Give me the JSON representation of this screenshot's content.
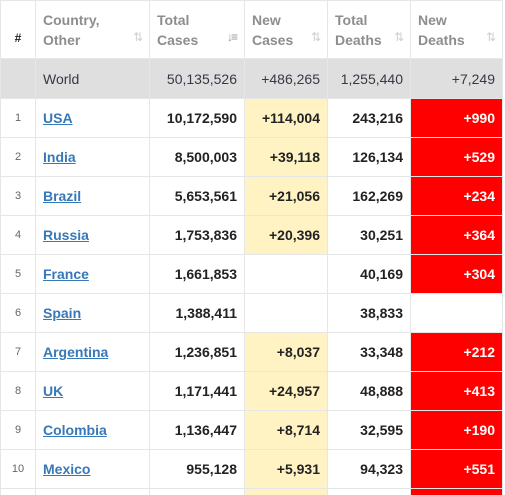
{
  "header": {
    "num": "#",
    "country": [
      "Country,",
      "Other"
    ],
    "total_cases": [
      "Total",
      "Cases"
    ],
    "new_cases": [
      "New",
      "Cases"
    ],
    "total_deaths": [
      "Total",
      "Deaths"
    ],
    "new_deaths": [
      "New",
      "Deaths"
    ],
    "sort_icon": "⇅",
    "sort_icon_active": "↓≡"
  },
  "world": {
    "label": "World",
    "total_cases": "50,135,526",
    "new_cases": "+486,265",
    "total_deaths": "1,255,440",
    "new_deaths": "+7,249"
  },
  "rows": [
    {
      "num": "1",
      "country": "USA",
      "total_cases": "10,172,590",
      "new_cases": "+114,004",
      "total_deaths": "243,216",
      "new_deaths": "+990"
    },
    {
      "num": "2",
      "country": "India",
      "total_cases": "8,500,003",
      "new_cases": "+39,118",
      "total_deaths": "126,134",
      "new_deaths": "+529"
    },
    {
      "num": "3",
      "country": "Brazil",
      "total_cases": "5,653,561",
      "new_cases": "+21,056",
      "total_deaths": "162,269",
      "new_deaths": "+234"
    },
    {
      "num": "4",
      "country": "Russia",
      "total_cases": "1,753,836",
      "new_cases": "+20,396",
      "total_deaths": "30,251",
      "new_deaths": "+364"
    },
    {
      "num": "5",
      "country": "France",
      "total_cases": "1,661,853",
      "new_cases": "",
      "total_deaths": "40,169",
      "new_deaths": "+304"
    },
    {
      "num": "6",
      "country": "Spain",
      "total_cases": "1,388,411",
      "new_cases": "",
      "total_deaths": "38,833",
      "new_deaths": ""
    },
    {
      "num": "7",
      "country": "Argentina",
      "total_cases": "1,236,851",
      "new_cases": "+8,037",
      "total_deaths": "33,348",
      "new_deaths": "+212"
    },
    {
      "num": "8",
      "country": "UK",
      "total_cases": "1,171,441",
      "new_cases": "+24,957",
      "total_deaths": "48,888",
      "new_deaths": "+413"
    },
    {
      "num": "9",
      "country": "Colombia",
      "total_cases": "1,136,447",
      "new_cases": "+8,714",
      "total_deaths": "32,595",
      "new_deaths": "+190"
    },
    {
      "num": "10",
      "country": "Mexico",
      "total_cases": "955,128",
      "new_cases": "+5,931",
      "total_deaths": "94,323",
      "new_deaths": "+551"
    }
  ],
  "colors": {
    "link": "#3778b8",
    "new_cases_bg": "#fff3c4",
    "new_deaths_bg": "#ff0000",
    "world_bg": "#dfdfdf",
    "header_text": "#8d8d8d"
  }
}
